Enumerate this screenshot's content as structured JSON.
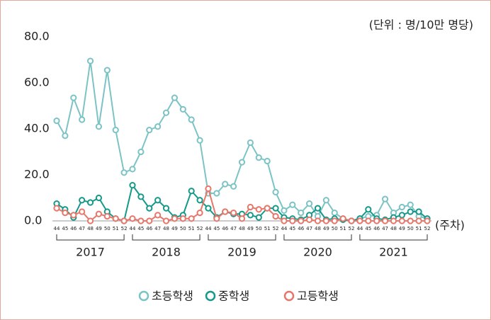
{
  "chart_data": {
    "type": "line",
    "unit_note": "(단위 : 명/10만 명당)",
    "x_label": "(주차)",
    "categories": [
      "44",
      "45",
      "46",
      "47",
      "48",
      "49",
      "50",
      "51",
      "52",
      "44",
      "45",
      "46",
      "47",
      "48",
      "49",
      "50",
      "51",
      "52",
      "44",
      "45",
      "46",
      "47",
      "48",
      "49",
      "50",
      "51",
      "52",
      "44",
      "45",
      "46",
      "47",
      "48",
      "49",
      "50",
      "51",
      "52",
      "44",
      "45",
      "46",
      "47",
      "48",
      "49",
      "50",
      "51",
      "52"
    ],
    "years": [
      "2017",
      "2018",
      "2019",
      "2020",
      "2021"
    ],
    "series": [
      {
        "name": "초등학생",
        "color": "#7cc3c6",
        "values": [
          43.5,
          37,
          53.5,
          44,
          69.5,
          41,
          65.5,
          39.5,
          21,
          22.5,
          30,
          39.5,
          41,
          47,
          53.5,
          48.5,
          44,
          35,
          12,
          12,
          16,
          15,
          25.5,
          34,
          27.5,
          26,
          12.5,
          4.5,
          7,
          3.5,
          7.5,
          2,
          9,
          3.5,
          1,
          0,
          1,
          2,
          2.5,
          9.5,
          3.5,
          6,
          7,
          2,
          1
        ]
      },
      {
        "name": "중학생",
        "color": "#16998a",
        "values": [
          7.5,
          5,
          1.5,
          9,
          8,
          10,
          4,
          1,
          0,
          15.5,
          10.5,
          5.5,
          9,
          5.5,
          1.5,
          2.5,
          13,
          9,
          5.5,
          1.5,
          4,
          3,
          3,
          2.5,
          1.5,
          5.5,
          5.5,
          1.5,
          1,
          0.5,
          2.5,
          5.5,
          0.5,
          1,
          0.5,
          0,
          1,
          5,
          1,
          0.5,
          1.5,
          2.5,
          4,
          4,
          1
        ]
      },
      {
        "name": "고등학생",
        "color": "#e8776b",
        "values": [
          5.5,
          3.5,
          2.5,
          4,
          0,
          3,
          2,
          1,
          0,
          1,
          0,
          0,
          2.5,
          0,
          1,
          1,
          1,
          3.5,
          14,
          1,
          4,
          3.5,
          1,
          6,
          5,
          5.5,
          2,
          0,
          0,
          0,
          0.5,
          0,
          0,
          0,
          1,
          0,
          0,
          0,
          0,
          0,
          0,
          0,
          0,
          0,
          0
        ]
      }
    ],
    "ylim": [
      0,
      80
    ],
    "yticks": [
      {
        "value": 0,
        "label": "0.0"
      },
      {
        "value": 20,
        "label": "20.0"
      },
      {
        "value": 40,
        "label": "40.0"
      },
      {
        "value": 60,
        "label": "60.0"
      },
      {
        "value": 80,
        "label": "80.0"
      }
    ],
    "legend": "bottom"
  }
}
